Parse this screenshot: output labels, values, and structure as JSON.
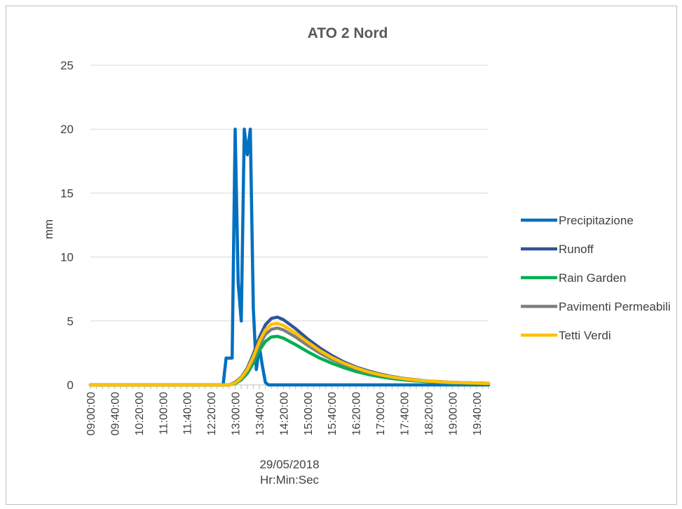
{
  "chart_data": {
    "type": "line",
    "title": "ATO 2 Nord",
    "ylabel": "mm",
    "xlabel_lines": [
      "29/05/2018",
      "Hr:Min:Sec"
    ],
    "ylim": [
      0,
      25
    ],
    "yticks": [
      0,
      5,
      10,
      15,
      20,
      25
    ],
    "grid": true,
    "legend_position": "right",
    "x_tick_labels": [
      "09:00:00",
      "09:40:00",
      "10:20:00",
      "11:00:00",
      "11:40:00",
      "12:20:00",
      "13:00:00",
      "13:40:00",
      "14:20:00",
      "15:00:00",
      "15:40:00",
      "16:20:00",
      "17:00:00",
      "17:40:00",
      "18:20:00",
      "19:00:00",
      "19:40:00"
    ],
    "series": [
      {
        "name": "Precipitazione",
        "color": "#0070c0",
        "points": [
          [
            "09:00:00",
            0
          ],
          [
            "12:40:00",
            0
          ],
          [
            "12:45:00",
            2.1
          ],
          [
            "12:55:00",
            2.1
          ],
          [
            "13:00:00",
            20
          ],
          [
            "13:05:00",
            8
          ],
          [
            "13:10:00",
            5
          ],
          [
            "13:15:00",
            20
          ],
          [
            "13:20:00",
            18
          ],
          [
            "13:25:00",
            20
          ],
          [
            "13:30:00",
            6
          ],
          [
            "13:35:00",
            1.2
          ],
          [
            "13:40:00",
            3
          ],
          [
            "13:45:00",
            1.5
          ],
          [
            "13:50:00",
            0.2
          ],
          [
            "13:55:00",
            0
          ],
          [
            "20:00:00",
            0
          ]
        ]
      },
      {
        "name": "Runoff",
        "color": "#2f5597",
        "points": [
          [
            "09:00:00",
            0
          ],
          [
            "12:50:00",
            0
          ],
          [
            "13:00:00",
            0.2
          ],
          [
            "13:10:00",
            0.6
          ],
          [
            "13:20:00",
            1.3
          ],
          [
            "13:30:00",
            2.4
          ],
          [
            "13:40:00",
            3.7
          ],
          [
            "13:50:00",
            4.7
          ],
          [
            "14:00:00",
            5.2
          ],
          [
            "14:10:00",
            5.3
          ],
          [
            "14:20:00",
            5.1
          ],
          [
            "14:40:00",
            4.4
          ],
          [
            "15:00:00",
            3.6
          ],
          [
            "15:20:00",
            2.9
          ],
          [
            "15:40:00",
            2.3
          ],
          [
            "16:00:00",
            1.8
          ],
          [
            "16:20:00",
            1.4
          ],
          [
            "16:40:00",
            1.1
          ],
          [
            "17:00:00",
            0.85
          ],
          [
            "17:20:00",
            0.65
          ],
          [
            "17:40:00",
            0.5
          ],
          [
            "18:00:00",
            0.4
          ],
          [
            "18:20:00",
            0.3
          ],
          [
            "18:40:00",
            0.25
          ],
          [
            "19:00:00",
            0.2
          ],
          [
            "19:40:00",
            0.15
          ],
          [
            "20:00:00",
            0.12
          ]
        ]
      },
      {
        "name": "Rain Garden",
        "color": "#00b050",
        "points": [
          [
            "09:00:00",
            0
          ],
          [
            "12:50:00",
            0
          ],
          [
            "13:00:00",
            0.1
          ],
          [
            "13:10:00",
            0.4
          ],
          [
            "13:20:00",
            0.9
          ],
          [
            "13:30:00",
            1.7
          ],
          [
            "13:40:00",
            2.7
          ],
          [
            "13:50:00",
            3.4
          ],
          [
            "14:00:00",
            3.75
          ],
          [
            "14:10:00",
            3.8
          ],
          [
            "14:20:00",
            3.65
          ],
          [
            "14:40:00",
            3.15
          ],
          [
            "15:00:00",
            2.6
          ],
          [
            "15:20:00",
            2.1
          ],
          [
            "15:40:00",
            1.7
          ],
          [
            "16:00:00",
            1.35
          ],
          [
            "16:20:00",
            1.05
          ],
          [
            "16:40:00",
            0.82
          ],
          [
            "17:00:00",
            0.64
          ],
          [
            "17:20:00",
            0.5
          ],
          [
            "17:40:00",
            0.39
          ],
          [
            "18:00:00",
            0.31
          ],
          [
            "18:20:00",
            0.25
          ],
          [
            "18:40:00",
            0.2
          ],
          [
            "19:00:00",
            0.16
          ],
          [
            "19:40:00",
            0.12
          ],
          [
            "20:00:00",
            0.1
          ]
        ]
      },
      {
        "name": "Pavimenti Permeabili",
        "color": "#7f7f7f",
        "points": [
          [
            "09:00:00",
            0
          ],
          [
            "12:50:00",
            0
          ],
          [
            "13:00:00",
            0.15
          ],
          [
            "13:10:00",
            0.5
          ],
          [
            "13:20:00",
            1.1
          ],
          [
            "13:30:00",
            2.0
          ],
          [
            "13:40:00",
            3.1
          ],
          [
            "13:50:00",
            3.95
          ],
          [
            "14:00:00",
            4.35
          ],
          [
            "14:10:00",
            4.45
          ],
          [
            "14:20:00",
            4.3
          ],
          [
            "14:40:00",
            3.75
          ],
          [
            "15:00:00",
            3.1
          ],
          [
            "15:20:00",
            2.5
          ],
          [
            "15:40:00",
            2.0
          ],
          [
            "16:00:00",
            1.6
          ],
          [
            "16:20:00",
            1.25
          ],
          [
            "16:40:00",
            0.97
          ],
          [
            "17:00:00",
            0.76
          ],
          [
            "17:20:00",
            0.59
          ],
          [
            "17:40:00",
            0.46
          ],
          [
            "18:00:00",
            0.37
          ],
          [
            "18:20:00",
            0.29
          ],
          [
            "18:40:00",
            0.23
          ],
          [
            "19:00:00",
            0.18
          ],
          [
            "19:40:00",
            0.14
          ],
          [
            "20:00:00",
            0.11
          ]
        ]
      },
      {
        "name": "Tetti Verdi",
        "color": "#ffc000",
        "points": [
          [
            "09:00:00",
            0
          ],
          [
            "12:50:00",
            0
          ],
          [
            "13:00:00",
            0.15
          ],
          [
            "13:10:00",
            0.55
          ],
          [
            "13:20:00",
            1.2
          ],
          [
            "13:30:00",
            2.2
          ],
          [
            "13:40:00",
            3.4
          ],
          [
            "13:50:00",
            4.3
          ],
          [
            "14:00:00",
            4.75
          ],
          [
            "14:10:00",
            4.8
          ],
          [
            "14:20:00",
            4.65
          ],
          [
            "14:40:00",
            4.05
          ],
          [
            "15:00:00",
            3.35
          ],
          [
            "15:20:00",
            2.7
          ],
          [
            "15:40:00",
            2.15
          ],
          [
            "16:00:00",
            1.7
          ],
          [
            "16:20:00",
            1.33
          ],
          [
            "16:40:00",
            1.03
          ],
          [
            "17:00:00",
            0.8
          ],
          [
            "17:20:00",
            0.62
          ],
          [
            "17:40:00",
            0.48
          ],
          [
            "18:00:00",
            0.38
          ],
          [
            "18:20:00",
            0.3
          ],
          [
            "18:40:00",
            0.24
          ],
          [
            "19:00:00",
            0.19
          ],
          [
            "19:40:00",
            0.14
          ],
          [
            "20:00:00",
            0.11
          ]
        ]
      }
    ]
  }
}
